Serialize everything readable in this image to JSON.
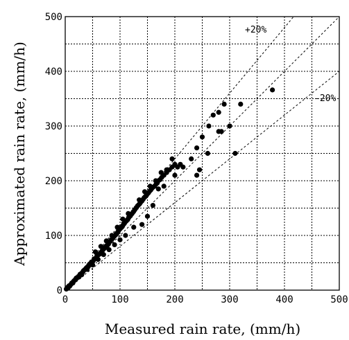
{
  "chart_data": {
    "type": "scatter",
    "xlabel": "Measured rain rate, (mm/h)",
    "ylabel": "Approximated rain rate, (mm/h)",
    "xlim": [
      0,
      500
    ],
    "ylim": [
      0,
      500
    ],
    "x_ticks": [
      "0",
      "100",
      "200",
      "300",
      "400",
      "500"
    ],
    "y_ticks": [
      "0",
      "100",
      "200",
      "300",
      "400",
      "500"
    ],
    "grid": true,
    "reference_lines": [
      {
        "label": "+20%",
        "slope": 1.2
      },
      {
        "label": "",
        "slope": 1.0
      },
      {
        "label": "-20%",
        "slope": 0.8
      }
    ],
    "series": [
      {
        "points": [
          [
            2,
            2
          ],
          [
            4,
            5
          ],
          [
            5,
            4
          ],
          [
            7,
            8
          ],
          [
            8,
            7
          ],
          [
            10,
            10
          ],
          [
            12,
            13
          ],
          [
            14,
            13
          ],
          [
            15,
            16
          ],
          [
            17,
            18
          ],
          [
            19,
            19
          ],
          [
            20,
            22
          ],
          [
            22,
            23
          ],
          [
            24,
            25
          ],
          [
            25,
            24
          ],
          [
            27,
            29
          ],
          [
            29,
            30
          ],
          [
            30,
            31
          ],
          [
            32,
            33
          ],
          [
            33,
            35
          ],
          [
            35,
            37
          ],
          [
            37,
            38
          ],
          [
            38,
            40
          ],
          [
            40,
            42
          ],
          [
            42,
            43
          ],
          [
            43,
            45
          ],
          [
            45,
            48
          ],
          [
            47,
            49
          ],
          [
            48,
            51
          ],
          [
            50,
            52
          ],
          [
            52,
            55
          ],
          [
            54,
            57
          ],
          [
            55,
            58
          ],
          [
            57,
            60
          ],
          [
            58,
            62
          ],
          [
            60,
            64
          ],
          [
            62,
            66
          ],
          [
            63,
            66
          ],
          [
            65,
            69
          ],
          [
            67,
            71
          ],
          [
            68,
            73
          ],
          [
            70,
            75
          ],
          [
            72,
            77
          ],
          [
            73,
            79
          ],
          [
            75,
            81
          ],
          [
            77,
            82
          ],
          [
            78,
            84
          ],
          [
            80,
            87
          ],
          [
            82,
            89
          ],
          [
            83,
            91
          ],
          [
            85,
            93
          ],
          [
            87,
            95
          ],
          [
            88,
            97
          ],
          [
            90,
            99
          ],
          [
            92,
            101
          ],
          [
            93,
            103
          ],
          [
            95,
            105
          ],
          [
            97,
            108
          ],
          [
            98,
            110
          ],
          [
            100,
            112
          ],
          [
            102,
            114
          ],
          [
            104,
            116
          ],
          [
            105,
            118
          ],
          [
            107,
            121
          ],
          [
            108,
            122
          ],
          [
            110,
            125
          ],
          [
            112,
            127
          ],
          [
            114,
            129
          ],
          [
            115,
            131
          ],
          [
            117,
            134
          ],
          [
            119,
            136
          ],
          [
            120,
            138
          ],
          [
            122,
            140
          ],
          [
            124,
            143
          ],
          [
            125,
            144
          ],
          [
            127,
            147
          ],
          [
            129,
            150
          ],
          [
            130,
            151
          ],
          [
            132,
            154
          ],
          [
            134,
            156
          ],
          [
            136,
            158
          ],
          [
            138,
            161
          ],
          [
            140,
            163
          ],
          [
            142,
            166
          ],
          [
            144,
            169
          ],
          [
            146,
            171
          ],
          [
            148,
            173
          ],
          [
            150,
            176
          ],
          [
            152,
            178
          ],
          [
            154,
            181
          ],
          [
            156,
            183
          ],
          [
            158,
            186
          ],
          [
            160,
            188
          ],
          [
            163,
            190
          ],
          [
            166,
            194
          ],
          [
            168,
            196
          ],
          [
            170,
            200
          ],
          [
            173,
            202
          ],
          [
            176,
            206
          ],
          [
            180,
            210
          ],
          [
            185,
            215
          ],
          [
            190,
            220
          ],
          [
            195,
            225
          ],
          [
            200,
            230
          ],
          [
            205,
            225
          ],
          [
            210,
            230
          ],
          [
            160,
            155
          ],
          [
            170,
            185
          ],
          [
            180,
            190
          ],
          [
            200,
            210
          ],
          [
            215,
            225
          ],
          [
            230,
            240
          ],
          [
            240,
            260
          ],
          [
            250,
            280
          ],
          [
            262,
            300
          ],
          [
            240,
            210
          ],
          [
            245,
            220
          ],
          [
            270,
            320
          ],
          [
            280,
            325
          ],
          [
            290,
            340
          ],
          [
            260,
            250
          ],
          [
            280,
            290
          ],
          [
            285,
            290
          ],
          [
            300,
            300
          ],
          [
            310,
            250
          ],
          [
            320,
            340
          ],
          [
            378,
            366
          ],
          [
            140,
            120
          ],
          [
            150,
            135
          ],
          [
            125,
            115
          ],
          [
            110,
            100
          ],
          [
            100,
            92
          ],
          [
            90,
            83
          ],
          [
            80,
            74
          ],
          [
            70,
            65
          ],
          [
            60,
            56
          ],
          [
            50,
            46
          ],
          [
            40,
            38
          ],
          [
            30,
            28
          ],
          [
            55,
            70
          ],
          [
            65,
            80
          ],
          [
            75,
            90
          ],
          [
            85,
            100
          ],
          [
            95,
            115
          ],
          [
            105,
            130
          ],
          [
            115,
            140
          ],
          [
            135,
            165
          ],
          [
            145,
            180
          ],
          [
            155,
            190
          ],
          [
            165,
            200
          ],
          [
            175,
            215
          ],
          [
            185,
            220
          ],
          [
            195,
            240
          ]
        ]
      }
    ]
  }
}
